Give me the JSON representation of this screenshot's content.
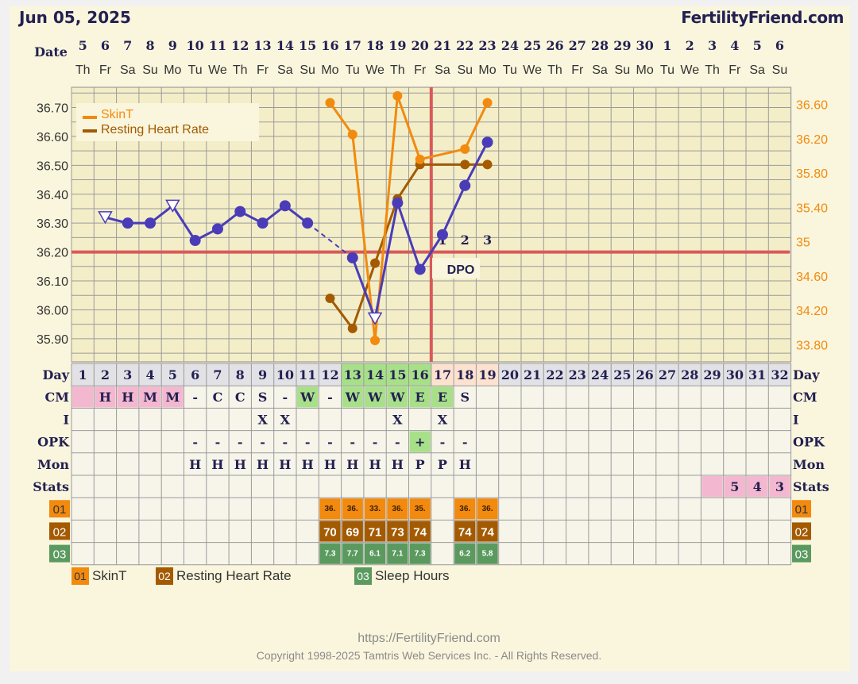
{
  "header": {
    "date": "Jun 05, 2025",
    "brand": "FertilityFriend.com"
  },
  "colors": {
    "bbt": "#4a3cb8",
    "skin_temp": "#f28a0f",
    "heart_rate": "#a35a00",
    "sleep": "#5b9a5f",
    "coverline": "#d85a5a",
    "green_cell": "#a8e08a",
    "pink_cell": "#f3b8d0",
    "peach_cell": "#fde2cf"
  },
  "labels": {
    "date": "Date",
    "day": "Day",
    "cm": "CM",
    "i": "I",
    "opk": "OPK",
    "mon": "Mon",
    "stats": "Stats",
    "dpo": "DPO",
    "legend_skin": "SkinT",
    "legend_hr": "Resting Heart Rate",
    "legend_sleep": "Sleep Hours",
    "row01": "01",
    "row02": "02",
    "row03": "03"
  },
  "footer": {
    "url": "https://FertilityFriend.com",
    "copyright": "Copyright 1998-2025 Tamtris Web Services Inc. - All Rights Reserved."
  },
  "chart_data": {
    "type": "line",
    "dates": [
      "5",
      "6",
      "7",
      "8",
      "9",
      "10",
      "11",
      "12",
      "13",
      "14",
      "15",
      "16",
      "17",
      "18",
      "19",
      "20",
      "21",
      "22",
      "23",
      "24",
      "25",
      "26",
      "27",
      "28",
      "29",
      "30",
      "1",
      "2",
      "3",
      "4",
      "5",
      "6"
    ],
    "weekdays": [
      "Th",
      "Fr",
      "Sa",
      "Su",
      "Mo",
      "Tu",
      "We",
      "Th",
      "Fr",
      "Sa",
      "Su",
      "Mo",
      "Tu",
      "We",
      "Th",
      "Fr",
      "Sa",
      "Su",
      "Mo",
      "Tu",
      "We",
      "Th",
      "Fr",
      "Sa",
      "Su",
      "Mo",
      "Tu",
      "We",
      "Th",
      "Fr",
      "Sa",
      "Su"
    ],
    "cycle_days": [
      1,
      2,
      3,
      4,
      5,
      6,
      7,
      8,
      9,
      10,
      11,
      12,
      13,
      14,
      15,
      16,
      17,
      18,
      19,
      20,
      21,
      22,
      23,
      24,
      25,
      26,
      27,
      28,
      29,
      30,
      31,
      32
    ],
    "y_left": {
      "ticks": [
        "36.70",
        "36.60",
        "36.50",
        "36.40",
        "36.30",
        "36.20",
        "36.10",
        "36.00",
        "35.90"
      ],
      "range": [
        35.82,
        36.77
      ]
    },
    "y_right": {
      "ticks": [
        "36.60",
        "36.20",
        "35.80",
        "35.40",
        "35",
        "34.60",
        "34.20",
        "33.80"
      ],
      "range": [
        33.6,
        36.8
      ]
    },
    "coverline": 36.2,
    "ovulation_day": 16,
    "dpo_numbers": [
      "1",
      "2",
      "3"
    ],
    "series": [
      {
        "name": "",
        "key": "bbt",
        "axis": "left",
        "points": [
          {
            "day": 2,
            "v": 36.32,
            "open": true
          },
          {
            "day": 3,
            "v": 36.3
          },
          {
            "day": 4,
            "v": 36.3
          },
          {
            "day": 5,
            "v": 36.36,
            "open": true
          },
          {
            "day": 6,
            "v": 36.24
          },
          {
            "day": 7,
            "v": 36.28
          },
          {
            "day": 8,
            "v": 36.34
          },
          {
            "day": 9,
            "v": 36.3
          },
          {
            "day": 10,
            "v": 36.36
          },
          {
            "day": 11,
            "v": 36.3
          },
          {
            "day": 13,
            "v": 36.18
          },
          {
            "day": 14,
            "v": 35.97,
            "open": true
          },
          {
            "day": 15,
            "v": 36.37
          },
          {
            "day": 16,
            "v": 36.14
          },
          {
            "day": 17,
            "v": 36.26
          },
          {
            "day": 18,
            "v": 36.43
          },
          {
            "day": 19,
            "v": 36.58
          }
        ],
        "dashed_gap": [
          11,
          13
        ]
      },
      {
        "name": "SkinT",
        "key": "skin_temp",
        "axis": "right",
        "points": [
          {
            "day": 12,
            "v": 36.62
          },
          {
            "day": 13,
            "v": 36.25
          },
          {
            "day": 14,
            "v": 33.85
          },
          {
            "day": 15,
            "v": 36.7
          },
          {
            "day": 16,
            "v": 35.96
          },
          {
            "day": 18,
            "v": 36.08
          },
          {
            "day": 19,
            "v": 36.62
          }
        ]
      },
      {
        "name": "Resting Heart Rate",
        "key": "heart_rate",
        "axis": "right",
        "points": [
          {
            "day": 12,
            "v": 34.34
          },
          {
            "day": 13,
            "v": 33.99
          },
          {
            "day": 14,
            "v": 34.75
          },
          {
            "day": 15,
            "v": 35.5
          },
          {
            "day": 16,
            "v": 35.9
          },
          {
            "day": 18,
            "v": 35.9
          },
          {
            "day": 19,
            "v": 35.9
          }
        ]
      }
    ],
    "grid": true,
    "legend_position": "top-left",
    "day_highlight": {
      "green": [
        13,
        14,
        15,
        16
      ],
      "peach": [
        17,
        18,
        19
      ]
    },
    "rows": {
      "cm": [
        {
          "day": 1,
          "text": "",
          "bg": "pink"
        },
        {
          "day": 2,
          "text": "H",
          "bg": "pink"
        },
        {
          "day": 3,
          "text": "H",
          "bg": "pink"
        },
        {
          "day": 4,
          "text": "M",
          "bg": "pink"
        },
        {
          "day": 5,
          "text": "M",
          "bg": "pink"
        },
        {
          "day": 6,
          "text": "-"
        },
        {
          "day": 7,
          "text": "C"
        },
        {
          "day": 8,
          "text": "C"
        },
        {
          "day": 9,
          "text": "S"
        },
        {
          "day": 10,
          "text": "-"
        },
        {
          "day": 11,
          "text": "W",
          "bg": "green"
        },
        {
          "day": 12,
          "text": "-"
        },
        {
          "day": 13,
          "text": "W",
          "bg": "green"
        },
        {
          "day": 14,
          "text": "W",
          "bg": "green"
        },
        {
          "day": 15,
          "text": "W",
          "bg": "green"
        },
        {
          "day": 16,
          "text": "E",
          "bg": "green"
        },
        {
          "day": 17,
          "text": "E",
          "bg": "green"
        },
        {
          "day": 18,
          "text": "S"
        }
      ],
      "i": [
        {
          "day": 9,
          "text": "X"
        },
        {
          "day": 10,
          "text": "X"
        },
        {
          "day": 15,
          "text": "X"
        },
        {
          "day": 17,
          "text": "X"
        }
      ],
      "opk": [
        {
          "day": 6,
          "text": "-"
        },
        {
          "day": 7,
          "text": "-"
        },
        {
          "day": 8,
          "text": "-"
        },
        {
          "day": 9,
          "text": "-"
        },
        {
          "day": 10,
          "text": "-"
        },
        {
          "day": 11,
          "text": "-"
        },
        {
          "day": 12,
          "text": "-"
        },
        {
          "day": 13,
          "text": "-"
        },
        {
          "day": 14,
          "text": "-"
        },
        {
          "day": 15,
          "text": "-"
        },
        {
          "day": 16,
          "text": "+",
          "bg": "green"
        },
        {
          "day": 17,
          "text": "-"
        },
        {
          "day": 18,
          "text": "-"
        }
      ],
      "mon": [
        {
          "day": 6,
          "text": "H"
        },
        {
          "day": 7,
          "text": "H"
        },
        {
          "day": 8,
          "text": "H"
        },
        {
          "day": 9,
          "text": "H"
        },
        {
          "day": 10,
          "text": "H"
        },
        {
          "day": 11,
          "text": "H"
        },
        {
          "day": 12,
          "text": "H"
        },
        {
          "day": 13,
          "text": "H"
        },
        {
          "day": 14,
          "text": "H"
        },
        {
          "day": 15,
          "text": "H"
        },
        {
          "day": 16,
          "text": "P"
        },
        {
          "day": 17,
          "text": "P"
        },
        {
          "day": 18,
          "text": "H"
        }
      ],
      "stats": [
        {
          "day": 29,
          "text": "",
          "bg": "pink"
        },
        {
          "day": 30,
          "text": "5",
          "bg": "pink"
        },
        {
          "day": 31,
          "text": "4",
          "bg": "pink"
        },
        {
          "day": 32,
          "text": "3",
          "bg": "pink"
        }
      ],
      "r01": [
        {
          "day": 12,
          "text": "36."
        },
        {
          "day": 13,
          "text": "36."
        },
        {
          "day": 14,
          "text": "33."
        },
        {
          "day": 15,
          "text": "36."
        },
        {
          "day": 16,
          "text": "35."
        },
        {
          "day": 18,
          "text": "36."
        },
        {
          "day": 19,
          "text": "36."
        }
      ],
      "r02": [
        {
          "day": 12,
          "text": "70"
        },
        {
          "day": 13,
          "text": "69"
        },
        {
          "day": 14,
          "text": "71"
        },
        {
          "day": 15,
          "text": "73"
        },
        {
          "day": 16,
          "text": "74"
        },
        {
          "day": 18,
          "text": "74"
        },
        {
          "day": 19,
          "text": "74"
        }
      ],
      "r03": [
        {
          "day": 12,
          "text": "7.3"
        },
        {
          "day": 13,
          "text": "7.7"
        },
        {
          "day": 14,
          "text": "6.1"
        },
        {
          "day": 15,
          "text": "7.1"
        },
        {
          "day": 16,
          "text": "7.3"
        },
        {
          "day": 18,
          "text": "6.2"
        },
        {
          "day": 19,
          "text": "5.8"
        }
      ]
    }
  }
}
